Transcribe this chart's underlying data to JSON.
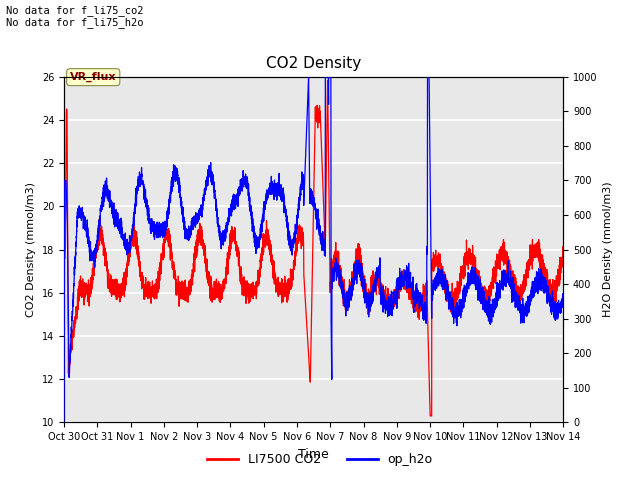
{
  "title": "CO2 Density",
  "xlabel": "Time",
  "ylabel_left": "CO2 Density (mmol/m3)",
  "ylabel_right": "H2O Density (mmol/m3)",
  "ylim_left": [
    10,
    26
  ],
  "ylim_right": [
    0,
    1000
  ],
  "annotation_text": "No data for f_li75_co2\nNo data for f_li75_h2o",
  "annotation_box_label": "VR_flux",
  "annotation_box_color": "#ffffcc",
  "legend_entries": [
    "LI7500 CO2",
    "op_h2o"
  ],
  "co2_color": "red",
  "h2o_color": "blue",
  "background_color": "#e8e8e8",
  "grid_color": "white",
  "fig_background": "#ffffff",
  "yticks_left": [
    10,
    12,
    14,
    16,
    18,
    20,
    22,
    24,
    26
  ],
  "yticks_right": [
    0,
    100,
    200,
    300,
    400,
    500,
    600,
    700,
    800,
    900,
    1000
  ],
  "tick_labels": [
    "Oct 30",
    "Oct 31",
    "Nov 1",
    "Nov 2",
    "Nov 3",
    "Nov 4",
    "Nov 5",
    "Nov 6",
    "Nov 7",
    "Nov 8",
    "Nov 9Nov",
    "10Nov",
    "11Nov",
    "12Nov",
    "13Nov 14"
  ]
}
